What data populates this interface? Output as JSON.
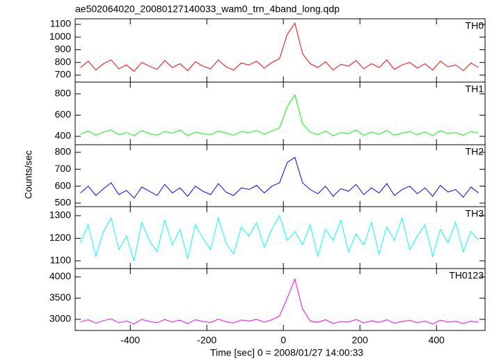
{
  "title": "ae502064020_20080127140033_wam0_trn_4band_long.qdp",
  "ylabel": "Counts/sec",
  "xlabel": "Time [sec] 0 = 2008/01/27 14:00:33",
  "chart_data": [
    {
      "type": "line",
      "label": "TH0",
      "color": "#ff0000",
      "xlim": [
        -544,
        527
      ],
      "ylim": [
        645,
        1144
      ],
      "yticks": [
        700,
        800,
        900,
        1000,
        1100
      ],
      "x": [
        -530,
        -510,
        -490,
        -470,
        -450,
        -430,
        -410,
        -390,
        -370,
        -350,
        -330,
        -310,
        -290,
        -270,
        -250,
        -230,
        -210,
        -190,
        -170,
        -150,
        -130,
        -110,
        -90,
        -70,
        -50,
        -30,
        -10,
        10,
        30,
        50,
        70,
        90,
        110,
        130,
        150,
        170,
        190,
        210,
        230,
        250,
        270,
        290,
        310,
        330,
        350,
        370,
        390,
        410,
        430,
        450,
        470,
        490,
        510
      ],
      "values": [
        760,
        810,
        740,
        790,
        820,
        750,
        780,
        730,
        800,
        770,
        745,
        815,
        760,
        790,
        735,
        805,
        770,
        750,
        820,
        765,
        740,
        795,
        780,
        810,
        755,
        800,
        830,
        1020,
        1110,
        870,
        790,
        760,
        805,
        740,
        785,
        770,
        815,
        750,
        790,
        760,
        820,
        745,
        780,
        800,
        755,
        790,
        740,
        810,
        765,
        780,
        735,
        795,
        760
      ]
    },
    {
      "type": "line",
      "label": "TH1",
      "color": "#00ff00",
      "xlim": [
        -544,
        527
      ],
      "ylim": [
        321,
        911
      ],
      "yticks": [
        400,
        600,
        800
      ],
      "x": [
        -530,
        -510,
        -490,
        -470,
        -450,
        -430,
        -410,
        -390,
        -370,
        -350,
        -330,
        -310,
        -290,
        -270,
        -250,
        -230,
        -210,
        -190,
        -170,
        -150,
        -130,
        -110,
        -90,
        -70,
        -50,
        -30,
        -10,
        10,
        30,
        50,
        70,
        90,
        110,
        130,
        150,
        170,
        190,
        210,
        230,
        250,
        270,
        290,
        310,
        330,
        350,
        370,
        390,
        410,
        430,
        450,
        470,
        490,
        510
      ],
      "values": [
        420,
        450,
        410,
        440,
        460,
        415,
        435,
        405,
        455,
        425,
        410,
        445,
        430,
        460,
        405,
        440,
        425,
        415,
        450,
        430,
        410,
        445,
        435,
        455,
        420,
        450,
        480,
        680,
        790,
        520,
        440,
        415,
        450,
        405,
        435,
        425,
        460,
        410,
        440,
        420,
        455,
        410,
        430,
        445,
        415,
        440,
        405,
        455,
        425,
        435,
        410,
        445,
        430
      ]
    },
    {
      "type": "line",
      "label": "TH2",
      "color": "#0000ff",
      "xlim": [
        -544,
        527
      ],
      "ylim": [
        479,
        845
      ],
      "yticks": [
        500,
        600,
        700,
        800
      ],
      "x": [
        -530,
        -510,
        -490,
        -470,
        -450,
        -430,
        -410,
        -390,
        -370,
        -350,
        -330,
        -310,
        -290,
        -270,
        -250,
        -230,
        -210,
        -190,
        -170,
        -150,
        -130,
        -110,
        -90,
        -70,
        -50,
        -30,
        -10,
        10,
        30,
        50,
        70,
        90,
        110,
        130,
        150,
        170,
        190,
        210,
        230,
        250,
        270,
        290,
        310,
        330,
        350,
        370,
        390,
        410,
        430,
        450,
        470,
        490,
        510
      ],
      "values": [
        560,
        600,
        545,
        585,
        620,
        550,
        575,
        530,
        595,
        570,
        545,
        610,
        560,
        590,
        540,
        600,
        570,
        550,
        615,
        565,
        545,
        590,
        580,
        605,
        560,
        600,
        620,
        740,
        770,
        620,
        580,
        555,
        600,
        540,
        585,
        570,
        610,
        550,
        590,
        560,
        615,
        545,
        580,
        600,
        555,
        590,
        540,
        605,
        565,
        580,
        535,
        595,
        560
      ]
    },
    {
      "type": "line",
      "label": "TH3",
      "color": "#00ffff",
      "xlim": [
        -544,
        527
      ],
      "ylim": [
        1066,
        1340
      ],
      "yticks": [
        1100,
        1200,
        1300
      ],
      "x": [
        -530,
        -510,
        -490,
        -470,
        -450,
        -430,
        -410,
        -390,
        -370,
        -350,
        -330,
        -310,
        -290,
        -270,
        -250,
        -230,
        -210,
        -190,
        -170,
        -150,
        -130,
        -110,
        -90,
        -70,
        -50,
        -30,
        -10,
        10,
        30,
        50,
        70,
        90,
        110,
        130,
        150,
        170,
        190,
        210,
        230,
        250,
        270,
        290,
        310,
        330,
        350,
        370,
        390,
        410,
        430,
        450,
        470,
        490,
        510
      ],
      "values": [
        1180,
        1260,
        1120,
        1230,
        1290,
        1150,
        1210,
        1100,
        1270,
        1190,
        1140,
        1280,
        1170,
        1240,
        1110,
        1260,
        1200,
        1150,
        1290,
        1180,
        1130,
        1250,
        1210,
        1270,
        1160,
        1240,
        1300,
        1190,
        1230,
        1170,
        1260,
        1120,
        1240,
        1190,
        1280,
        1140,
        1220,
        1170,
        1270,
        1130,
        1250,
        1190,
        1290,
        1150,
        1210,
        1260,
        1120,
        1240,
        1180,
        1270,
        1140,
        1230,
        1190
      ]
    },
    {
      "type": "line",
      "label": "TH0123",
      "color": "#ff00ff",
      "xlim": [
        -544,
        527
      ],
      "ylim": [
        2738,
        4197
      ],
      "yticks": [
        3000,
        3500,
        4000
      ],
      "xticks": [
        -400,
        -200,
        0,
        200,
        400
      ],
      "x": [
        -530,
        -510,
        -490,
        -470,
        -450,
        -430,
        -410,
        -390,
        -370,
        -350,
        -330,
        -310,
        -290,
        -270,
        -250,
        -230,
        -210,
        -190,
        -170,
        -150,
        -130,
        -110,
        -90,
        -70,
        -50,
        -30,
        -10,
        10,
        30,
        50,
        70,
        90,
        110,
        130,
        150,
        170,
        190,
        210,
        230,
        250,
        270,
        290,
        310,
        330,
        350,
        370,
        390,
        410,
        430,
        450,
        470,
        490,
        510
      ],
      "values": [
        2940,
        2990,
        2910,
        2970,
        3010,
        2920,
        2960,
        2890,
        3000,
        2950,
        2920,
        2995,
        2940,
        2980,
        2900,
        2990,
        2950,
        2925,
        3005,
        2945,
        2915,
        2985,
        2960,
        3000,
        2935,
        2990,
        3080,
        3500,
        3950,
        3250,
        2960,
        2930,
        2990,
        2905,
        2950,
        2940,
        2995,
        2915,
        2965,
        2930,
        2990,
        2910,
        2950,
        2975,
        2920,
        2960,
        2890,
        2980,
        2935,
        2955,
        2900,
        2960,
        2930
      ]
    }
  ]
}
